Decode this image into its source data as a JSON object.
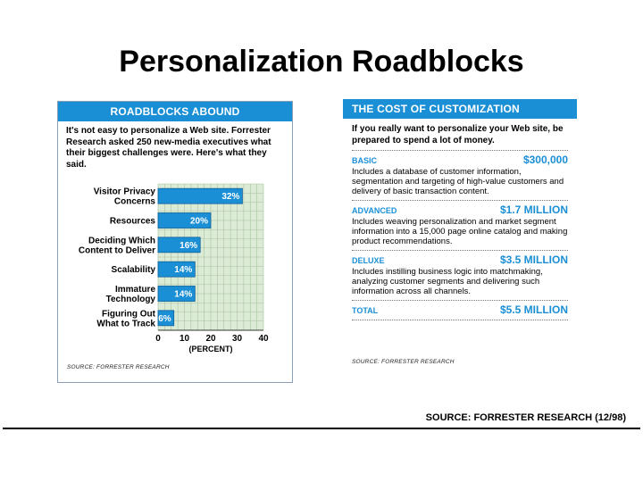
{
  "slide": {
    "title": "Personalization Roadblocks",
    "source_note": "SOURCE: FORRESTER RESEARCH (12/98)"
  },
  "left_panel": {
    "header": "ROADBLOCKS ABOUND",
    "intro": "It's not easy to personalize a Web site. Forrester Research asked 250 new-media executives what their biggest challenges were. Here's what they said.",
    "source": "SOURCE: FORRESTER RESEARCH"
  },
  "right_panel": {
    "header": "THE COST OF CUSTOMIZATION",
    "intro": "If you really want to personalize your Web site, be prepared to spend a lot of money.",
    "tiers": [
      {
        "name": "BASIC",
        "price": "$300,000",
        "desc": "Includes a database of customer information, segmentation and targeting of high-value customers and delivery of basic transaction content."
      },
      {
        "name": "ADVANCED",
        "price": "$1.7 MILLION",
        "desc": "Includes weaving personalization and market segment information into a 15,000 page online catalog and making product recommendations."
      },
      {
        "name": "DELUXE",
        "price": "$3.5 MILLION",
        "desc": "Includes instilling business logic into matchmaking, analyzing customer segments and delivering such information across all channels."
      }
    ],
    "total": {
      "name": "TOTAL",
      "price": "$5.5 MILLION"
    },
    "source": "SOURCE: FORRESTER RESEARCH"
  },
  "chart_data": {
    "type": "bar",
    "orientation": "horizontal",
    "title": "ROADBLOCKS ABOUND",
    "categories": [
      [
        "Visitor Privacy",
        "Concerns"
      ],
      [
        "Resources"
      ],
      [
        "Deciding Which",
        "Content to Deliver"
      ],
      [
        "Scalability"
      ],
      [
        "Immature",
        "Technology"
      ],
      [
        "Figuring Out",
        "What to Track"
      ]
    ],
    "values": [
      32,
      20,
      16,
      14,
      14,
      6
    ],
    "value_labels": [
      "32%",
      "20%",
      "16%",
      "14%",
      "14%",
      "6%"
    ],
    "xlim": [
      0,
      40
    ],
    "xticks": [
      0,
      10,
      20,
      30,
      40
    ],
    "xlabel": "(PERCENT)",
    "grid": true,
    "colors": {
      "bar": "#1b8fd6",
      "bar_edge": "#0d5f99",
      "plot_bg": "#dcebd6",
      "grid": "#a8c2a0",
      "label": "#ffffff"
    }
  }
}
